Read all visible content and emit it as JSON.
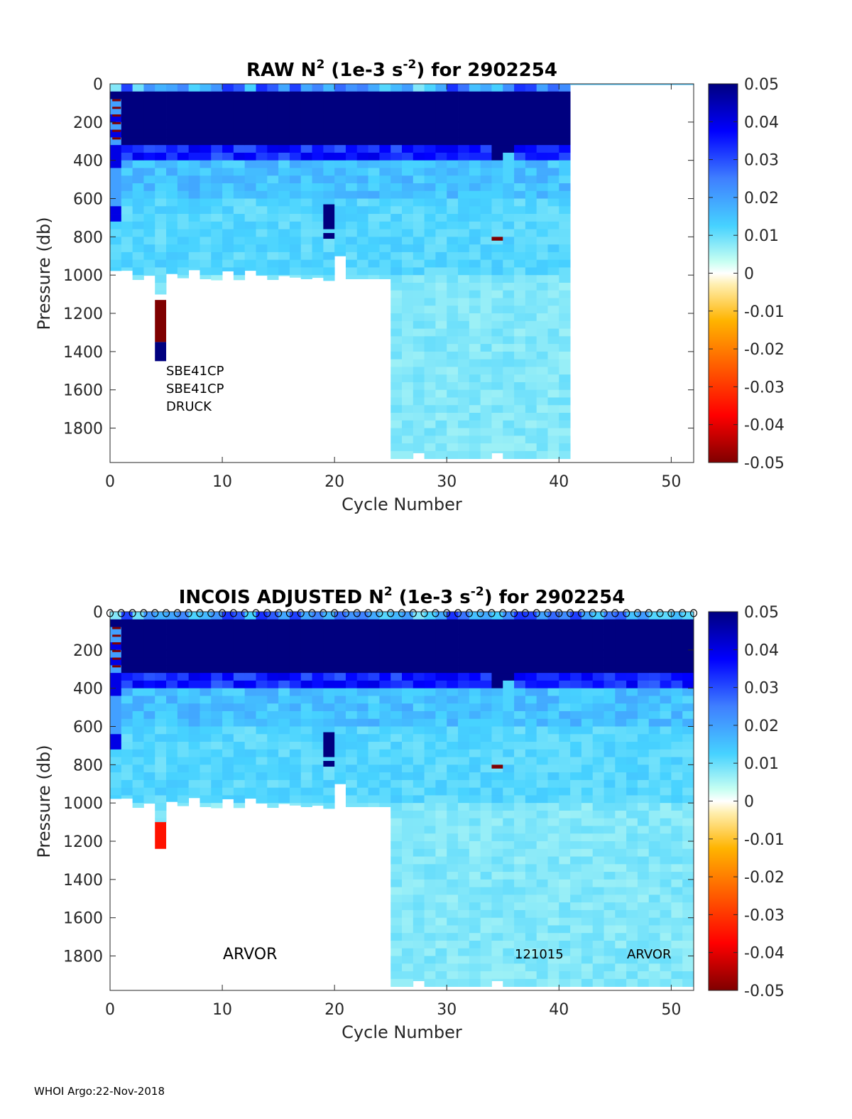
{
  "footer": "WHOI Argo:22-Nov-2018",
  "chart_data": [
    {
      "type": "heatmap",
      "title_prefix": "RAW N",
      "title_sup1": "2",
      "title_mid": " (1e-3 s",
      "title_sup2": "-2",
      "title_suffix": ") for 2902254",
      "xlabel": "Cycle Number",
      "ylabel": "Pressure (db)",
      "xlim": [
        0,
        52
      ],
      "ylim": [
        0,
        1980
      ],
      "y_reversed": true,
      "xticks": [
        "0",
        "10",
        "20",
        "30",
        "40",
        "50"
      ],
      "yticks": [
        "0",
        "200",
        "400",
        "600",
        "800",
        "1000",
        "1200",
        "1400",
        "1600",
        "1800"
      ],
      "colorbar": {
        "range": [
          -0.05,
          0.05
        ],
        "ticks": [
          "0.05",
          "0.04",
          "0.03",
          "0.02",
          "0.01",
          "0",
          "-0.01",
          "-0.02",
          "-0.03",
          "-0.04",
          "-0.05"
        ]
      },
      "cycles_plotted": [
        0,
        41
      ],
      "profile_max_depth": {
        "cycles_0_24": 1000,
        "cycles_25_40": 1960
      },
      "layers": [
        {
          "top": 0,
          "bottom": 60,
          "value": 0.02
        },
        {
          "top": 60,
          "bottom": 280,
          "value": 0.05
        },
        {
          "top": 280,
          "bottom": 400,
          "value": 0.03
        },
        {
          "top": 400,
          "bottom": 1980,
          "value": 0.009
        }
      ],
      "anomalies": [
        {
          "cycle": 4.5,
          "top": 1130,
          "bottom": 1350,
          "value": -0.05
        },
        {
          "cycle": 4.5,
          "top": 1350,
          "bottom": 1450,
          "value": 0.05
        },
        {
          "cycle": 19.5,
          "top": 630,
          "bottom": 760,
          "value": 0.05
        },
        {
          "cycle": 19.5,
          "top": 780,
          "bottom": 810,
          "value": 0.05
        },
        {
          "cycle": 34.5,
          "top": 800,
          "bottom": 820,
          "value": -0.05
        }
      ],
      "annotations": [
        "SBE41CP",
        "SBE41CP",
        "DRUCK"
      ]
    },
    {
      "type": "heatmap",
      "title_prefix": "INCOIS  ADJUSTED N",
      "title_sup1": "2",
      "title_mid": " (1e-3 s",
      "title_sup2": "-2",
      "title_suffix": ") for 2902254",
      "xlabel": "Cycle Number",
      "ylabel": "Pressure (db)",
      "xlim": [
        0,
        52
      ],
      "ylim": [
        0,
        1980
      ],
      "y_reversed": true,
      "xticks": [
        "0",
        "10",
        "20",
        "30",
        "40",
        "50"
      ],
      "yticks": [
        "0",
        "200",
        "400",
        "600",
        "800",
        "1000",
        "1200",
        "1400",
        "1600",
        "1800"
      ],
      "colorbar": {
        "range": [
          -0.05,
          0.05
        ],
        "ticks": [
          "0.05",
          "0.04",
          "0.03",
          "0.02",
          "0.01",
          "0",
          "-0.01",
          "-0.02",
          "-0.03",
          "-0.04",
          "-0.05"
        ]
      },
      "cycles_plotted": [
        0,
        52
      ],
      "profile_max_depth": {
        "cycles_0_24": 1000,
        "cycles_25_52": 1960
      },
      "layers": [
        {
          "top": 0,
          "bottom": 60,
          "value": 0.02
        },
        {
          "top": 60,
          "bottom": 280,
          "value": 0.05
        },
        {
          "top": 280,
          "bottom": 400,
          "value": 0.03
        },
        {
          "top": 400,
          "bottom": 1980,
          "value": 0.009
        }
      ],
      "anomalies": [
        {
          "cycle": 4.5,
          "top": 1100,
          "bottom": 1240,
          "value": -0.035
        },
        {
          "cycle": 19.5,
          "top": 630,
          "bottom": 760,
          "value": 0.05
        },
        {
          "cycle": 19.5,
          "top": 780,
          "bottom": 810,
          "value": 0.05
        },
        {
          "cycle": 34.5,
          "top": 800,
          "bottom": 820,
          "value": -0.05
        }
      ],
      "surface_markers": "o",
      "annotations": [
        "ARVOR",
        "121015",
        "ARVOR"
      ]
    }
  ]
}
